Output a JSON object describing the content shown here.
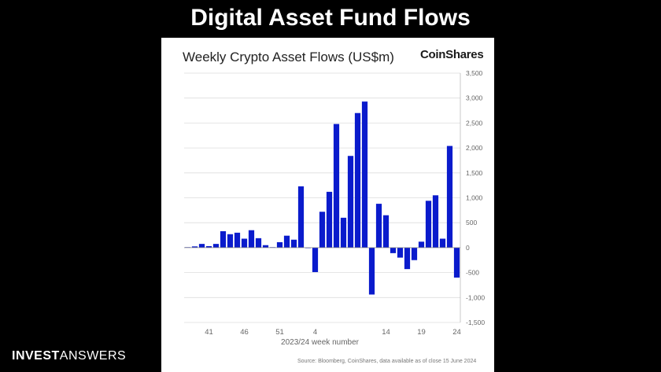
{
  "slide": {
    "title": "Digital Asset Fund Flows"
  },
  "brand": {
    "bold": "INVEST",
    "light": "ANSWERS"
  },
  "logo": {
    "text": "CoinShares"
  },
  "chart_data": {
    "type": "bar",
    "title": "Weekly Crypto Asset Flows (US$m)",
    "xlabel": "2023/24 week number",
    "ylabel": "",
    "ylim": [
      -1500,
      3500
    ],
    "yticks": [
      -1500,
      -1000,
      -500,
      0,
      500,
      1000,
      1500,
      2000,
      2500,
      3000,
      3500
    ],
    "ytick_labels": [
      "-1,500",
      "-1,000",
      "-500",
      "0",
      "500",
      "1,000",
      "1,500",
      "2,000",
      "2,500",
      "3,000",
      "3,500"
    ],
    "x_tick_labels": [
      {
        "index": 3,
        "label": "41"
      },
      {
        "index": 8,
        "label": "46"
      },
      {
        "index": 13,
        "label": "51"
      },
      {
        "index": 18,
        "label": "4"
      },
      {
        "index": 28,
        "label": "14"
      },
      {
        "index": 33,
        "label": "19"
      },
      {
        "index": 38,
        "label": "24"
      }
    ],
    "grid": true,
    "y_axis_side": "right",
    "bar_color": "#0a1bcc",
    "values": [
      10,
      25,
      75,
      30,
      75,
      330,
      270,
      300,
      180,
      350,
      190,
      50,
      10,
      110,
      240,
      160,
      1230,
      -10,
      -490,
      720,
      1120,
      2480,
      600,
      1840,
      2700,
      2930,
      -940,
      880,
      650,
      -110,
      -200,
      -430,
      -250,
      120,
      940,
      1050,
      180,
      2040,
      -600
    ],
    "source": "Source: Bloomberg, CoinShares, data available as of close 15 June 2024"
  }
}
